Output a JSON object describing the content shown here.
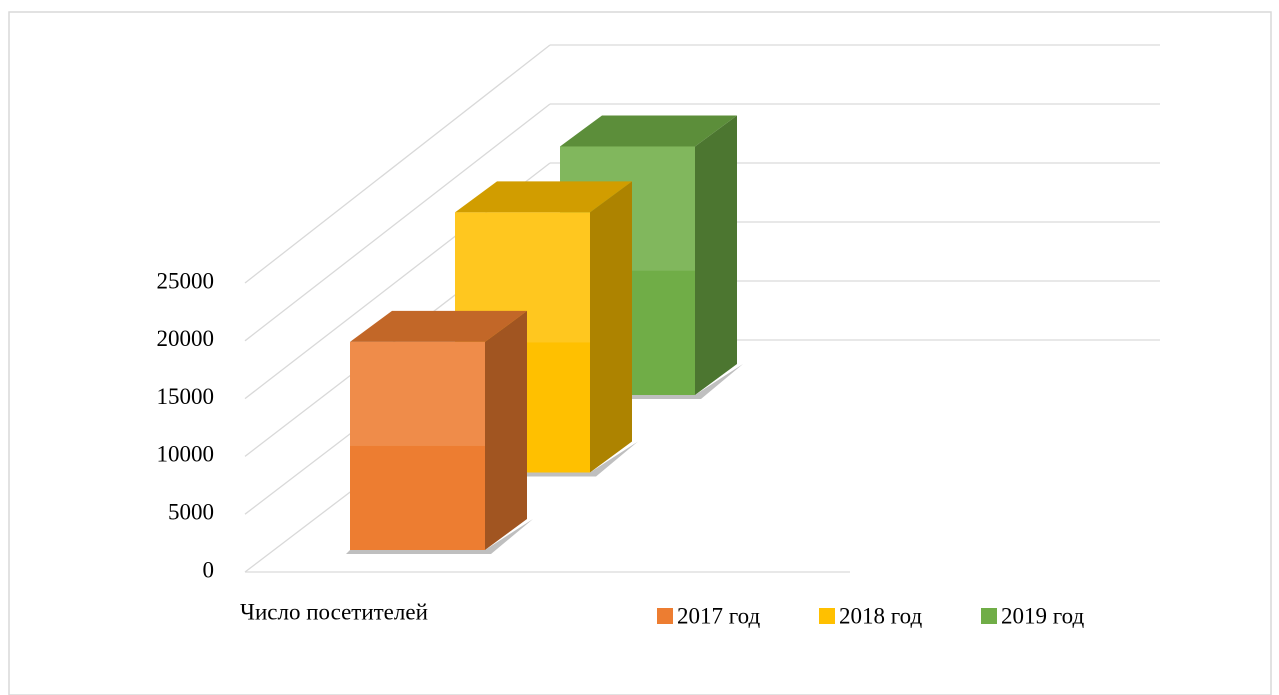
{
  "chart_data": {
    "type": "bar3d",
    "categories": [
      "Число посетителей"
    ],
    "series": [
      {
        "name": "2017 год",
        "color": "#ed7d31",
        "values": [
          18000
        ]
      },
      {
        "name": "2018 год",
        "color": "#ffc000",
        "values": [
          22500
        ]
      },
      {
        "name": "2019 год",
        "color": "#70ad47",
        "values": [
          21500
        ]
      }
    ],
    "ylim": [
      0,
      25000
    ],
    "yticks": [
      0,
      5000,
      10000,
      15000,
      20000,
      25000
    ],
    "grid": true,
    "legend": "bottom"
  }
}
